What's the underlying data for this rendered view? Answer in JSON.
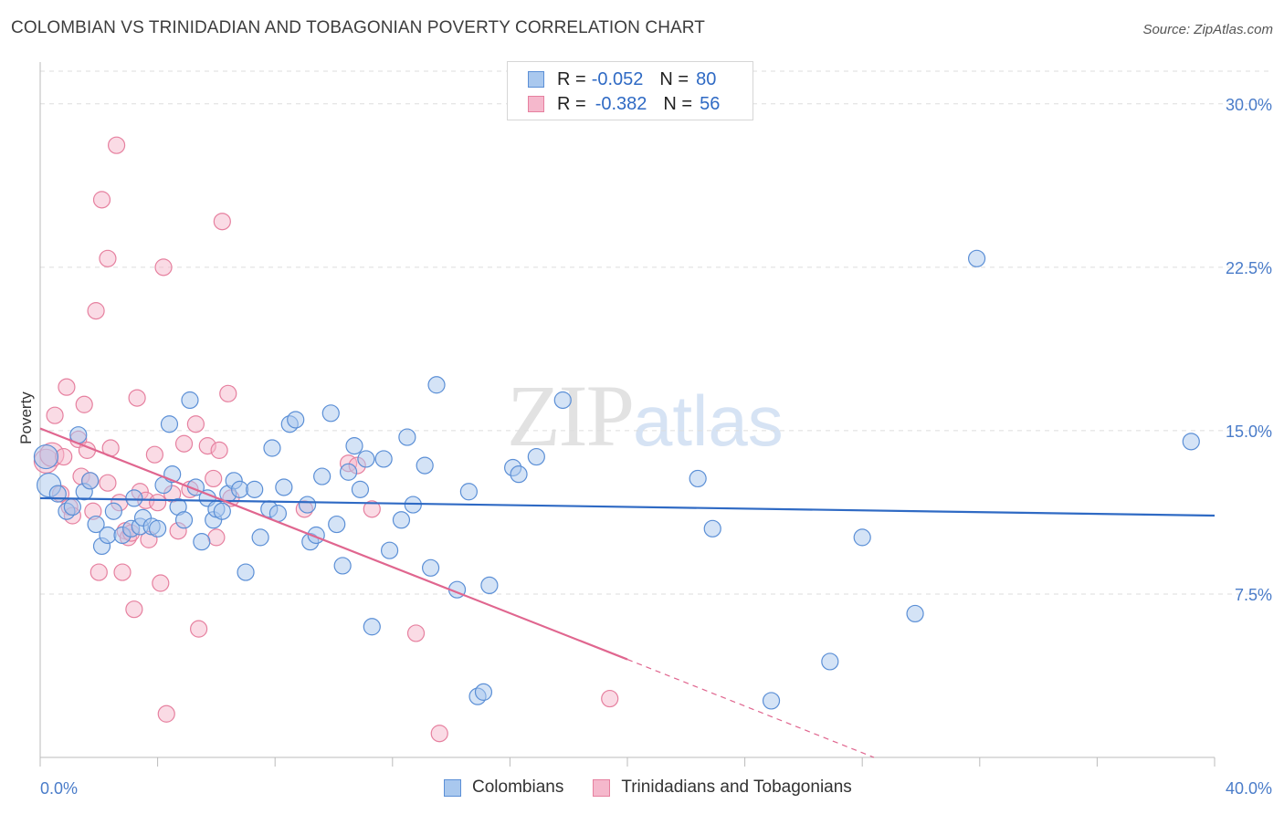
{
  "header": {
    "title": "COLOMBIAN VS TRINIDADIAN AND TOBAGONIAN POVERTY CORRELATION CHART",
    "source": "Source: ZipAtlas.com"
  },
  "watermark": {
    "zip": "ZIP",
    "atlas": "atlas"
  },
  "legend": {
    "rows": [
      {
        "r_label": "R =",
        "r_value": "-0.052",
        "n_label": "N =",
        "n_value": "80"
      },
      {
        "r_label": "R =",
        "r_value": "-0.382",
        "n_label": "N =",
        "n_value": "56"
      }
    ]
  },
  "bottom_legend": {
    "series1": "Colombians",
    "series2": "Trinidadians and Tobagonians"
  },
  "colors": {
    "blue_fill": "#a9c8ee",
    "blue_stroke": "#5b8fd6",
    "blue_line": "#2f6ac4",
    "pink_fill": "#f5b8cc",
    "pink_stroke": "#e6809f",
    "pink_line": "#e0668f",
    "grid": "#dddddd"
  },
  "chart_data": {
    "type": "scatter",
    "title": "COLOMBIAN VS TRINIDADIAN AND TOBAGONIAN POVERTY CORRELATION CHART",
    "ylabel": "Poverty",
    "xlabel": "",
    "xlim": [
      0,
      40
    ],
    "ylim": [
      0,
      31.5
    ],
    "x_tick_labels": [
      "0.0%",
      "40.0%"
    ],
    "y_ticks": [
      7.5,
      15.0,
      22.5,
      30.0
    ],
    "y_tick_labels": [
      "7.5%",
      "15.0%",
      "22.5%",
      "30.0%"
    ],
    "grid": "horizontal dashed",
    "legend_placement": "top-center",
    "series": [
      {
        "name": "Colombians",
        "r": -0.052,
        "n": 80,
        "trend": {
          "x": [
            0,
            40
          ],
          "y": [
            11.9,
            11.1
          ]
        },
        "points": [
          [
            0.2,
            13.8
          ],
          [
            0.3,
            12.5
          ],
          [
            0.6,
            12.1
          ],
          [
            0.9,
            11.3
          ],
          [
            1.1,
            11.5
          ],
          [
            1.3,
            14.8
          ],
          [
            1.5,
            12.2
          ],
          [
            1.7,
            12.7
          ],
          [
            1.9,
            10.7
          ],
          [
            2.1,
            9.7
          ],
          [
            2.3,
            10.2
          ],
          [
            2.5,
            11.3
          ],
          [
            2.8,
            10.2
          ],
          [
            3.1,
            10.5
          ],
          [
            3.2,
            11.9
          ],
          [
            3.4,
            10.6
          ],
          [
            3.5,
            11.0
          ],
          [
            3.8,
            10.6
          ],
          [
            4.0,
            10.5
          ],
          [
            4.2,
            12.5
          ],
          [
            4.4,
            15.3
          ],
          [
            4.5,
            13.0
          ],
          [
            4.7,
            11.5
          ],
          [
            4.9,
            10.9
          ],
          [
            5.1,
            16.4
          ],
          [
            5.3,
            12.4
          ],
          [
            5.5,
            9.9
          ],
          [
            5.7,
            11.9
          ],
          [
            5.9,
            10.9
          ],
          [
            6.0,
            11.4
          ],
          [
            6.2,
            11.3
          ],
          [
            6.4,
            12.1
          ],
          [
            6.6,
            12.7
          ],
          [
            6.8,
            12.3
          ],
          [
            7.0,
            8.5
          ],
          [
            7.3,
            12.3
          ],
          [
            7.5,
            10.1
          ],
          [
            7.8,
            11.4
          ],
          [
            7.9,
            14.2
          ],
          [
            8.1,
            11.2
          ],
          [
            8.3,
            12.4
          ],
          [
            8.5,
            15.3
          ],
          [
            8.7,
            15.5
          ],
          [
            9.1,
            11.6
          ],
          [
            9.2,
            9.9
          ],
          [
            9.4,
            10.2
          ],
          [
            9.6,
            12.9
          ],
          [
            9.9,
            15.8
          ],
          [
            10.1,
            10.7
          ],
          [
            10.3,
            8.8
          ],
          [
            10.5,
            13.1
          ],
          [
            10.7,
            14.3
          ],
          [
            10.9,
            12.3
          ],
          [
            11.1,
            13.7
          ],
          [
            11.3,
            6.0
          ],
          [
            11.7,
            13.7
          ],
          [
            11.9,
            9.5
          ],
          [
            12.3,
            10.9
          ],
          [
            12.5,
            14.7
          ],
          [
            12.7,
            11.6
          ],
          [
            13.1,
            13.4
          ],
          [
            13.3,
            8.7
          ],
          [
            13.5,
            17.1
          ],
          [
            14.2,
            7.7
          ],
          [
            14.6,
            12.2
          ],
          [
            14.9,
            2.8
          ],
          [
            15.3,
            7.9
          ],
          [
            15.1,
            3.0
          ],
          [
            16.1,
            13.3
          ],
          [
            16.3,
            13.0
          ],
          [
            16.9,
            13.8
          ],
          [
            17.8,
            16.4
          ],
          [
            22.4,
            12.8
          ],
          [
            22.9,
            10.5
          ],
          [
            24.9,
            2.6
          ],
          [
            26.9,
            4.4
          ],
          [
            28.0,
            10.1
          ],
          [
            29.8,
            6.6
          ],
          [
            31.9,
            22.9
          ],
          [
            39.2,
            14.5
          ]
        ]
      },
      {
        "name": "Trinidadians and Tobagonians",
        "r": -0.382,
        "n": 56,
        "trend": {
          "x": [
            0,
            20
          ],
          "y": [
            15.1,
            4.5
          ]
        },
        "trend_dashed": {
          "x": [
            20,
            28.4
          ],
          "y": [
            4.5,
            0
          ]
        },
        "points": [
          [
            0.2,
            13.6
          ],
          [
            0.4,
            13.9
          ],
          [
            0.5,
            15.7
          ],
          [
            0.7,
            12.1
          ],
          [
            0.8,
            13.8
          ],
          [
            0.9,
            17.0
          ],
          [
            1.0,
            11.5
          ],
          [
            1.1,
            11.1
          ],
          [
            1.3,
            14.6
          ],
          [
            1.4,
            12.9
          ],
          [
            1.5,
            16.2
          ],
          [
            1.6,
            14.1
          ],
          [
            1.7,
            12.7
          ],
          [
            1.8,
            11.3
          ],
          [
            1.9,
            20.5
          ],
          [
            2.0,
            8.5
          ],
          [
            2.1,
            25.6
          ],
          [
            2.3,
            12.6
          ],
          [
            2.3,
            22.9
          ],
          [
            2.4,
            14.2
          ],
          [
            2.6,
            28.1
          ],
          [
            2.7,
            11.7
          ],
          [
            2.8,
            8.5
          ],
          [
            2.9,
            10.4
          ],
          [
            3.0,
            10.1
          ],
          [
            3.1,
            10.3
          ],
          [
            3.2,
            6.8
          ],
          [
            3.3,
            16.5
          ],
          [
            3.4,
            12.2
          ],
          [
            3.6,
            11.8
          ],
          [
            3.7,
            10.0
          ],
          [
            3.9,
            13.9
          ],
          [
            4.0,
            11.7
          ],
          [
            4.1,
            8.0
          ],
          [
            4.2,
            22.5
          ],
          [
            4.3,
            2.0
          ],
          [
            4.5,
            12.1
          ],
          [
            4.7,
            10.4
          ],
          [
            4.9,
            14.4
          ],
          [
            5.1,
            12.3
          ],
          [
            5.3,
            15.3
          ],
          [
            5.4,
            5.9
          ],
          [
            5.7,
            14.3
          ],
          [
            5.9,
            12.8
          ],
          [
            6.0,
            10.1
          ],
          [
            6.1,
            14.1
          ],
          [
            6.2,
            24.6
          ],
          [
            6.4,
            16.7
          ],
          [
            6.5,
            11.9
          ],
          [
            9.0,
            11.4
          ],
          [
            10.5,
            13.5
          ],
          [
            11.3,
            11.4
          ],
          [
            12.8,
            5.7
          ],
          [
            13.6,
            1.1
          ],
          [
            19.4,
            2.7
          ],
          [
            10.8,
            13.4
          ]
        ]
      }
    ]
  }
}
